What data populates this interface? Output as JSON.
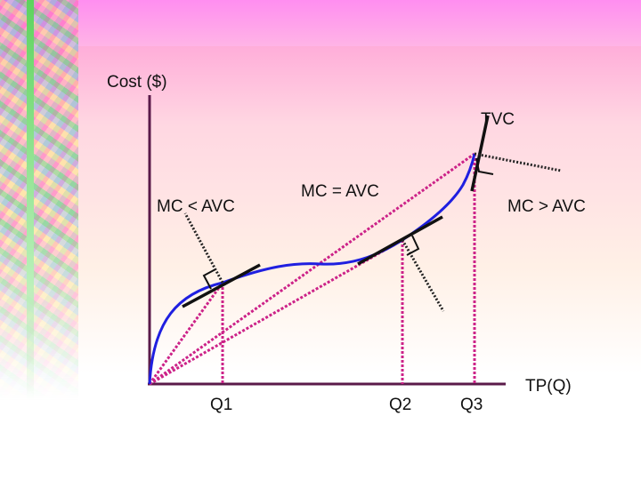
{
  "diagram": {
    "y_axis_label": "Cost ($)",
    "x_axis_label": "TP(Q)",
    "curve_label": "TVC",
    "region_labels": {
      "left": "MC < AVC",
      "middle": "MC = AVC",
      "right": "MC > AVC"
    },
    "quantity_labels": [
      "Q1",
      "Q2",
      "Q3"
    ]
  },
  "colors": {
    "axis": "#5a1a4a",
    "curve": "#1f1fe0",
    "ray": "#cc2288",
    "tangent": "#111111",
    "perpendicular": "#222222"
  }
}
